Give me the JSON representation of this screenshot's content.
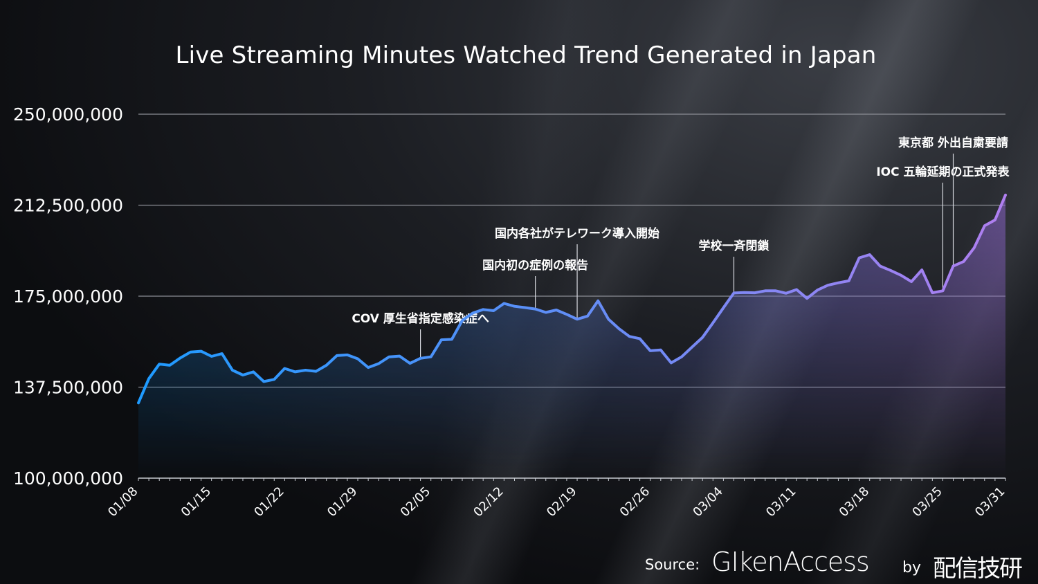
{
  "colors": {
    "line_start": "#1e9bff",
    "line_mid": "#5a8ff7",
    "line_end": "#b07ff0",
    "grid": "#8a8d94",
    "text": "#ffffff"
  },
  "source": {
    "label": "Source:",
    "brand": "GIkenAccess",
    "by": "by",
    "org": "配信技研"
  },
  "chart_data": {
    "type": "area",
    "title": "Live Streaming Minutes Watched Trend Generated in Japan",
    "xlabel": "",
    "ylabel": "",
    "ylim": [
      100000000,
      250000000
    ],
    "yticks": [
      "100,000,000",
      "137,500,000",
      "175,000,000",
      "212,500,000",
      "250,000,000"
    ],
    "ytick_values": [
      100000000,
      137500000,
      175000000,
      212500000,
      250000000
    ],
    "xticks": [
      "01/08",
      "01/15",
      "01/22",
      "01/29",
      "02/05",
      "02/12",
      "02/19",
      "02/26",
      "03/04",
      "03/11",
      "03/18",
      "03/25",
      "03/31"
    ],
    "x_start": "01/08",
    "x_end": "03/31",
    "grid": true,
    "series": [
      {
        "values": [
          131000000,
          141000000,
          147000000,
          146500000,
          149500000,
          152000000,
          152300000,
          150200000,
          151300000,
          144500000,
          142500000,
          143800000,
          139800000,
          140700000,
          145200000,
          143800000,
          144500000,
          144000000,
          146500000,
          150500000,
          150800000,
          149200000,
          145600000,
          147200000,
          150000000,
          150300000,
          147300000,
          149400000,
          150000000,
          157000000,
          157200000,
          165000000,
          168000000,
          169500000,
          169000000,
          172000000,
          170800000,
          170300000,
          169700000,
          168300000,
          169300000,
          167500000,
          165500000,
          166800000,
          173100000,
          165500000,
          161600000,
          158400000,
          157500000,
          152500000,
          152800000,
          147500000,
          150000000,
          154000000,
          158000000,
          164000000,
          170200000,
          176300000,
          176500000,
          176400000,
          177200000,
          177200000,
          176200000,
          177700000,
          174100000,
          177500000,
          179500000,
          180500000,
          181300000,
          190800000,
          192100000,
          187400000,
          185600000,
          183600000,
          181000000,
          185800000,
          176400000,
          177200000,
          187400000,
          189300000,
          194900000,
          204000000,
          206400000,
          216700000
        ]
      }
    ],
    "annotations": [
      {
        "label": "COV 厚生省指定感染症へ",
        "x_index": 27
      },
      {
        "label": "国内初の症例の報告",
        "x_index": 38
      },
      {
        "label": "国内各社がテレワーク導入開始",
        "x_index": 42
      },
      {
        "label": "学校一斉閉鎖",
        "x_index": 57
      },
      {
        "label": "IOC 五輪延期の正式発表",
        "x_index": 77
      },
      {
        "label": "東京都 外出自粛要請",
        "x_index": 78
      }
    ]
  }
}
